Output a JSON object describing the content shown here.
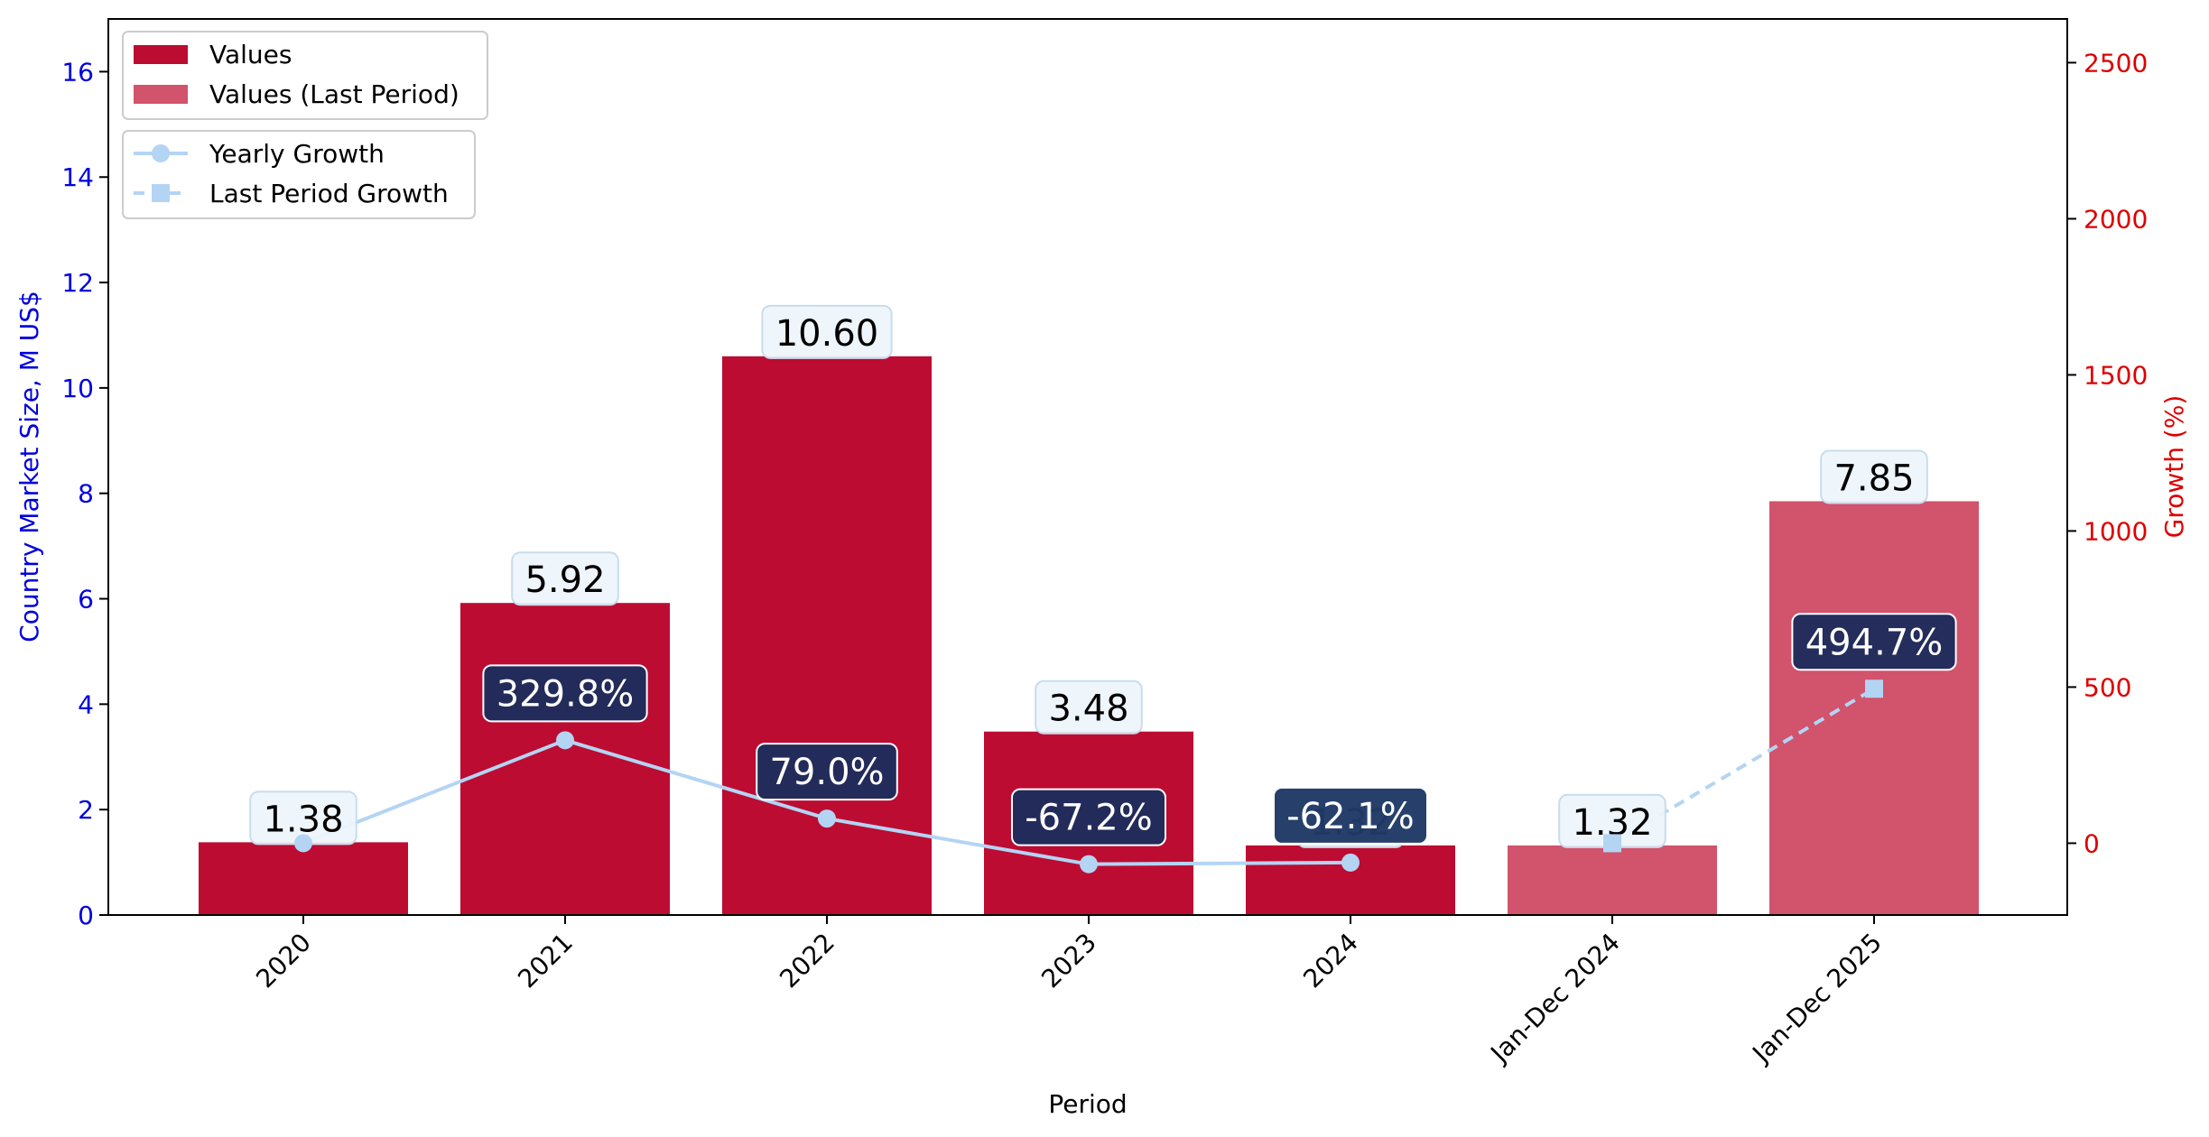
{
  "chart_data": {
    "type": "bar",
    "categories": [
      "2020",
      "2021",
      "2022",
      "2023",
      "2024",
      "Jan-Dec 2024",
      "Jan-Dec 2025"
    ],
    "xlabel": "Period",
    "ylabel_left": "Country Market Size, M US$",
    "ylabel_right": "Growth (%)",
    "ylim_left": [
      0,
      17
    ],
    "ylim_right": [
      -230,
      2640
    ],
    "yticks_left": [
      "0",
      "2",
      "4",
      "6",
      "8",
      "10",
      "12",
      "14",
      "16"
    ],
    "yticks_right": [
      "0",
      "500",
      "1000",
      "1500",
      "2000",
      "2500"
    ],
    "series": [
      {
        "name": "Values",
        "kind": "bar",
        "color": "#bc0c32",
        "values": [
          1.38,
          5.92,
          10.6,
          3.48,
          1.32,
          null,
          null
        ],
        "labels": [
          "1.38",
          "5.92",
          "10.60",
          "3.48",
          "1.32",
          "",
          ""
        ]
      },
      {
        "name": "Values (Last Period)",
        "kind": "bar",
        "color": "#d1536c",
        "values": [
          null,
          null,
          null,
          null,
          null,
          1.32,
          7.85
        ],
        "labels": [
          "",
          "",
          "",
          "",
          "",
          "1.32",
          "7.85"
        ]
      },
      {
        "name": "Yearly Growth",
        "kind": "line",
        "axis": "right",
        "color": "#b4d4f4",
        "marker": "circle",
        "values": [
          0,
          329.8,
          79.0,
          -67.2,
          -62.1,
          null,
          null
        ],
        "labels": [
          "",
          "329.8%",
          "79.0%",
          "-67.2%",
          "-62.1%",
          "",
          ""
        ]
      },
      {
        "name": "Last Period Growth",
        "kind": "line",
        "axis": "right",
        "color": "#b4d4f4",
        "marker": "square",
        "dashed": true,
        "values": [
          null,
          null,
          null,
          null,
          null,
          0,
          494.7
        ],
        "labels": [
          "",
          "",
          "",
          "",
          "",
          "",
          "494.7%"
        ]
      }
    ],
    "legend_placement": "top-left",
    "grid": false
  }
}
